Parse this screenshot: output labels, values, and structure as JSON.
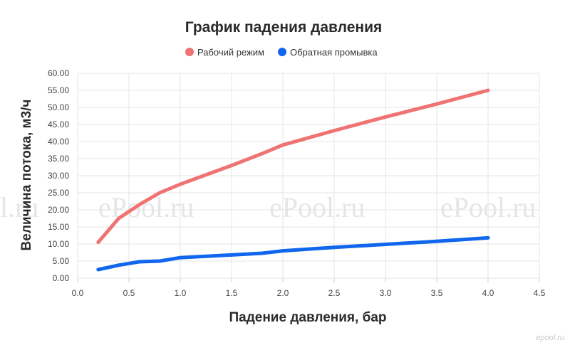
{
  "chart_data": {
    "type": "line",
    "title": "График падения давления",
    "xlabel": "Падение давления, бар",
    "ylabel": "Величина потока, м3/ч",
    "xlim": [
      0,
      4.5
    ],
    "ylim": [
      0,
      60
    ],
    "x_ticks": [
      "0.0",
      "0.5",
      "1.0",
      "1.5",
      "2.0",
      "2.5",
      "3.0",
      "3.5",
      "4.0",
      "4.5"
    ],
    "y_ticks": [
      "0.00",
      "5.00",
      "10.00",
      "15.00",
      "20.00",
      "25.00",
      "30.00",
      "35.00",
      "40.00",
      "45.00",
      "50.00",
      "55.00",
      "60.00"
    ],
    "grid": true,
    "legend_position": "top-center",
    "series": [
      {
        "name": "Рабочий режим",
        "color": "#f07373",
        "points": [
          [
            0.2,
            10.5
          ],
          [
            0.4,
            17.5
          ],
          [
            0.6,
            21.5
          ],
          [
            0.8,
            25
          ],
          [
            1.0,
            27.5
          ],
          [
            1.5,
            33
          ],
          [
            1.8,
            36.5
          ],
          [
            2.0,
            39
          ],
          [
            2.5,
            43.2
          ],
          [
            3.0,
            47.2
          ],
          [
            3.5,
            51
          ],
          [
            4.0,
            55
          ]
        ]
      },
      {
        "name": "Обратная промывка",
        "color": "#1166ee",
        "points": [
          [
            0.2,
            2.5
          ],
          [
            0.4,
            3.8
          ],
          [
            0.6,
            4.8
          ],
          [
            0.8,
            5
          ],
          [
            1.0,
            6
          ],
          [
            1.5,
            6.8
          ],
          [
            1.8,
            7.3
          ],
          [
            2.0,
            8
          ],
          [
            2.5,
            9
          ],
          [
            3.0,
            9.9
          ],
          [
            3.5,
            10.8
          ],
          [
            4.0,
            11.8
          ]
        ]
      }
    ]
  },
  "watermarks": [
    "l.ru",
    "ePool.ru",
    "ePool.ru",
    "ePool.ru"
  ],
  "corner_mark": "epool.ru"
}
